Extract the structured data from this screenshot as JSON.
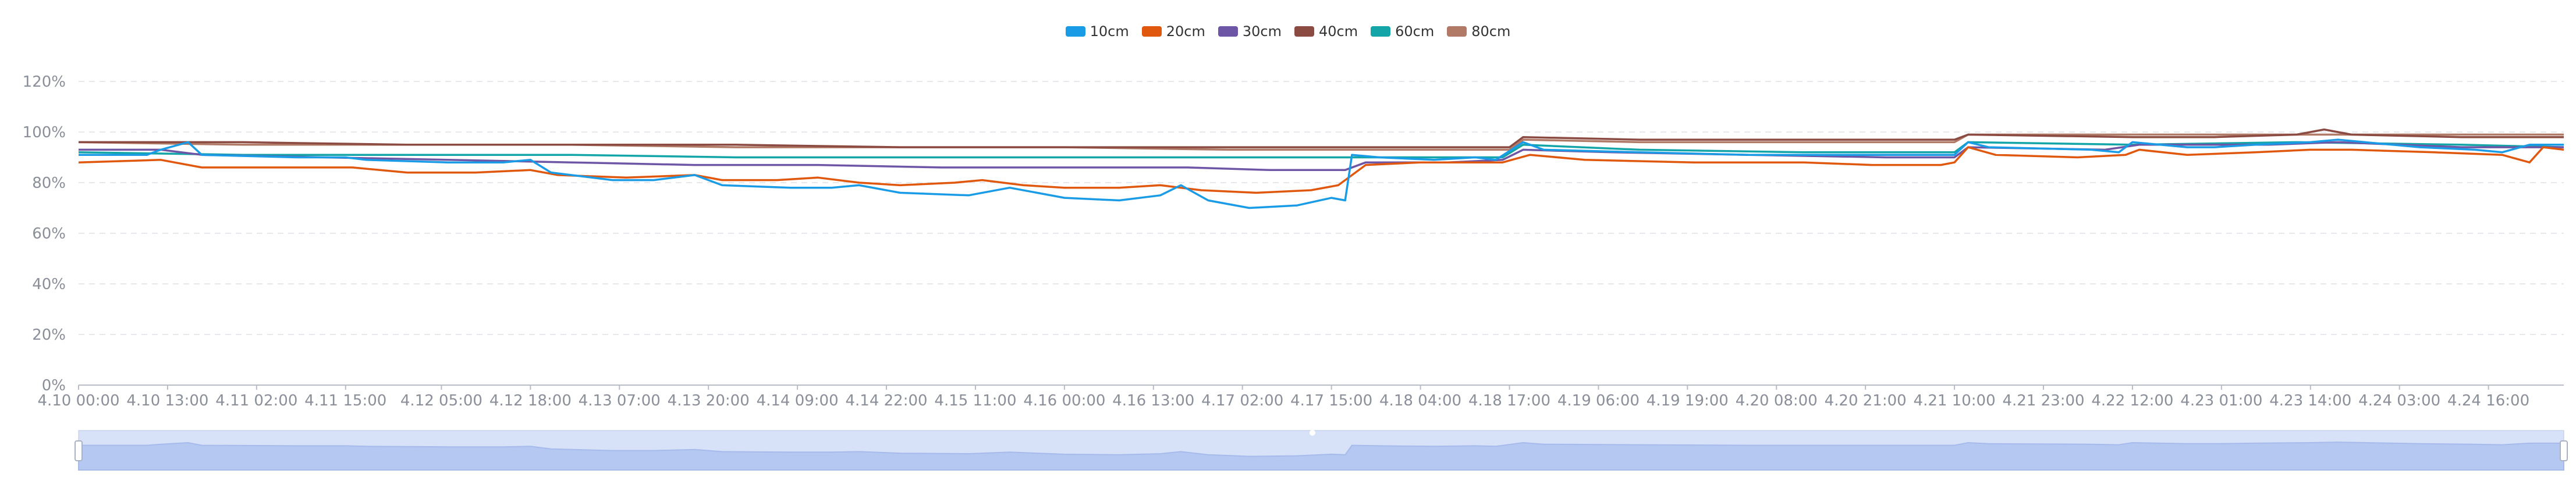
{
  "legend": {
    "items": [
      {
        "label": "10cm",
        "color": "#1a9be6"
      },
      {
        "label": "20cm",
        "color": "#e0570e"
      },
      {
        "label": "30cm",
        "color": "#6e56a6"
      },
      {
        "label": "40cm",
        "color": "#8b4a42"
      },
      {
        "label": "60cm",
        "color": "#14a5a8"
      },
      {
        "label": "80cm",
        "color": "#b07a66"
      }
    ]
  },
  "chart_data": {
    "type": "line",
    "title": "",
    "xlabel": "",
    "ylabel": "",
    "ylim": [
      0,
      120
    ],
    "y_ticks": [
      "0%",
      "20%",
      "40%",
      "60%",
      "80%",
      "100%",
      "120%"
    ],
    "grid": true,
    "legend_position": "top-center",
    "x_start": "4.10 00:00",
    "x_end": "4.25 03:00",
    "x_ticks": [
      "4.10 00:00",
      "4.10 13:00",
      "4.11 02:00",
      "4.11 15:00",
      "4.12 05:00",
      "4.12 18:00",
      "4.13 07:00",
      "4.13 20:00",
      "4.14 09:00",
      "4.14 22:00",
      "4.15 11:00",
      "4.16 00:00",
      "4.16 13:00",
      "4.17 02:00",
      "4.17 15:00",
      "4.18 04:00",
      "4.18 17:00",
      "4.19 06:00",
      "4.19 19:00",
      "4.20 08:00",
      "4.20 21:00",
      "4.21 10:00",
      "4.21 23:00",
      "4.22 12:00",
      "4.23 01:00",
      "4.23 14:00",
      "4.24 03:00",
      "4.24 16:00"
    ],
    "series": [
      {
        "name": "10cm",
        "color": "#1a9be6",
        "points": [
          [
            "4.10 00:00",
            91
          ],
          [
            "4.10 10:00",
            91
          ],
          [
            "4.10 12:00",
            93
          ],
          [
            "4.10 16:00",
            96
          ],
          [
            "4.10 18:00",
            91
          ],
          [
            "4.11 08:00",
            90
          ],
          [
            "4.11 15:00",
            90
          ],
          [
            "4.11 18:00",
            89
          ],
          [
            "4.12 06:00",
            88
          ],
          [
            "4.12 14:00",
            88
          ],
          [
            "4.12 18:00",
            89
          ],
          [
            "4.12 21:00",
            84
          ],
          [
            "4.13 06:00",
            81
          ],
          [
            "4.13 12:00",
            81
          ],
          [
            "4.13 18:00",
            83
          ],
          [
            "4.13 22:00",
            79
          ],
          [
            "4.14 08:00",
            78
          ],
          [
            "4.14 14:00",
            78
          ],
          [
            "4.14 18:00",
            79
          ],
          [
            "4.15 00:00",
            76
          ],
          [
            "4.15 10:00",
            75
          ],
          [
            "4.15 16:00",
            78
          ],
          [
            "4.15 20:00",
            76
          ],
          [
            "4.16 00:00",
            74
          ],
          [
            "4.16 08:00",
            73
          ],
          [
            "4.16 14:00",
            75
          ],
          [
            "4.16 17:00",
            79
          ],
          [
            "4.16 21:00",
            73
          ],
          [
            "4.17 03:00",
            70
          ],
          [
            "4.17 10:00",
            71
          ],
          [
            "4.17 15:00",
            74
          ],
          [
            "4.17 17:00",
            73
          ],
          [
            "4.17 18:00",
            91
          ],
          [
            "4.17 22:00",
            90
          ],
          [
            "4.18 06:00",
            89
          ],
          [
            "4.18 12:00",
            90
          ],
          [
            "4.18 15:00",
            89
          ],
          [
            "4.18 19:00",
            96
          ],
          [
            "4.18 22:00",
            93
          ],
          [
            "4.19 12:00",
            92
          ],
          [
            "4.20 04:00",
            91
          ],
          [
            "4.20 20:00",
            91
          ],
          [
            "4.21 07:00",
            91
          ],
          [
            "4.21 10:00",
            91
          ],
          [
            "4.21 12:00",
            96
          ],
          [
            "4.21 15:00",
            94
          ],
          [
            "4.22 06:00",
            93
          ],
          [
            "4.22 10:00",
            92
          ],
          [
            "4.22 12:00",
            96
          ],
          [
            "4.22 20:00",
            94
          ],
          [
            "4.23 00:00",
            94
          ],
          [
            "4.23 06:00",
            95
          ],
          [
            "4.23 14:00",
            96
          ],
          [
            "4.23 18:00",
            97
          ],
          [
            "4.24 06:00",
            94
          ],
          [
            "4.24 14:00",
            93
          ],
          [
            "4.24 18:00",
            92
          ],
          [
            "4.24 22:00",
            95
          ],
          [
            "4.25 03:00",
            95
          ]
        ]
      },
      {
        "name": "20cm",
        "color": "#e0570e",
        "points": [
          [
            "4.10 00:00",
            88
          ],
          [
            "4.10 12:00",
            89
          ],
          [
            "4.10 18:00",
            86
          ],
          [
            "4.11 04:00",
            86
          ],
          [
            "4.11 16:00",
            86
          ],
          [
            "4.12 00:00",
            84
          ],
          [
            "4.12 10:00",
            84
          ],
          [
            "4.12 18:00",
            85
          ],
          [
            "4.12 22:00",
            83
          ],
          [
            "4.13 08:00",
            82
          ],
          [
            "4.13 18:00",
            83
          ],
          [
            "4.13 22:00",
            81
          ],
          [
            "4.14 06:00",
            81
          ],
          [
            "4.14 12:00",
            82
          ],
          [
            "4.14 18:00",
            80
          ],
          [
            "4.15 00:00",
            79
          ],
          [
            "4.15 08:00",
            80
          ],
          [
            "4.15 12:00",
            81
          ],
          [
            "4.15 18:00",
            79
          ],
          [
            "4.16 00:00",
            78
          ],
          [
            "4.16 08:00",
            78
          ],
          [
            "4.16 14:00",
            79
          ],
          [
            "4.16 20:00",
            77
          ],
          [
            "4.17 04:00",
            76
          ],
          [
            "4.17 12:00",
            77
          ],
          [
            "4.17 16:00",
            79
          ],
          [
            "4.17 20:00",
            87
          ],
          [
            "4.18 04:00",
            88
          ],
          [
            "4.18 12:00",
            88
          ],
          [
            "4.18 16:00",
            88
          ],
          [
            "4.18 20:00",
            91
          ],
          [
            "4.19 04:00",
            89
          ],
          [
            "4.19 20:00",
            88
          ],
          [
            "4.20 12:00",
            88
          ],
          [
            "4.20 22:00",
            87
          ],
          [
            "4.21 08:00",
            87
          ],
          [
            "4.21 10:00",
            88
          ],
          [
            "4.21 12:00",
            94
          ],
          [
            "4.21 16:00",
            91
          ],
          [
            "4.22 04:00",
            90
          ],
          [
            "4.22 11:00",
            91
          ],
          [
            "4.22 13:00",
            93
          ],
          [
            "4.22 20:00",
            91
          ],
          [
            "4.23 06:00",
            92
          ],
          [
            "4.23 14:00",
            93
          ],
          [
            "4.23 20:00",
            93
          ],
          [
            "4.24 08:00",
            92
          ],
          [
            "4.24 18:00",
            91
          ],
          [
            "4.24 22:00",
            88
          ],
          [
            "4.25 00:00",
            94
          ],
          [
            "4.25 03:00",
            93
          ]
        ]
      },
      {
        "name": "30cm",
        "color": "#6e56a6",
        "points": [
          [
            "4.10 00:00",
            93
          ],
          [
            "4.10 12:00",
            93
          ],
          [
            "4.10 18:00",
            91
          ],
          [
            "4.11 12:00",
            90
          ],
          [
            "4.12 06:00",
            89
          ],
          [
            "4.13 00:00",
            88
          ],
          [
            "4.13 18:00",
            87
          ],
          [
            "4.14 12:00",
            87
          ],
          [
            "4.15 06:00",
            86
          ],
          [
            "4.16 00:00",
            86
          ],
          [
            "4.16 18:00",
            86
          ],
          [
            "4.17 06:00",
            85
          ],
          [
            "4.17 12:00",
            85
          ],
          [
            "4.17 17:00",
            85
          ],
          [
            "4.17 20:00",
            88
          ],
          [
            "4.18 08:00",
            88
          ],
          [
            "4.18 16:00",
            89
          ],
          [
            "4.18 19:00",
            93
          ],
          [
            "4.19 08:00",
            92
          ],
          [
            "4.20 04:00",
            91
          ],
          [
            "4.21 00:00",
            90
          ],
          [
            "4.21 10:00",
            90
          ],
          [
            "4.21 12:00",
            94
          ],
          [
            "4.22 08:00",
            93
          ],
          [
            "4.22 13:00",
            95
          ],
          [
            "4.23 08:00",
            95
          ],
          [
            "4.23 18:00",
            96
          ],
          [
            "4.24 12:00",
            94
          ],
          [
            "4.25 03:00",
            94
          ]
        ]
      },
      {
        "name": "40cm",
        "color": "#8b4a42",
        "points": [
          [
            "4.10 00:00",
            96
          ],
          [
            "4.11 00:00",
            96
          ],
          [
            "4.12 00:00",
            95
          ],
          [
            "4.13 00:00",
            95
          ],
          [
            "4.14 00:00",
            95
          ],
          [
            "4.15 00:00",
            94
          ],
          [
            "4.16 00:00",
            94
          ],
          [
            "4.17 00:00",
            94
          ],
          [
            "4.17 18:00",
            94
          ],
          [
            "4.18 12:00",
            94
          ],
          [
            "4.18 17:00",
            94
          ],
          [
            "4.18 19:00",
            98
          ],
          [
            "4.19 12:00",
            97
          ],
          [
            "4.20 12:00",
            97
          ],
          [
            "4.21 10:00",
            97
          ],
          [
            "4.21 12:00",
            99
          ],
          [
            "4.22 12:00",
            98
          ],
          [
            "4.23 00:00",
            98
          ],
          [
            "4.23 12:00",
            99
          ],
          [
            "4.23 16:00",
            101
          ],
          [
            "4.23 20:00",
            99
          ],
          [
            "4.24 12:00",
            98
          ],
          [
            "4.25 03:00",
            98
          ]
        ]
      },
      {
        "name": "60cm",
        "color": "#14a5a8",
        "points": [
          [
            "4.10 00:00",
            92
          ],
          [
            "4.11 00:00",
            91
          ],
          [
            "4.12 00:00",
            91
          ],
          [
            "4.13 00:00",
            91
          ],
          [
            "4.14 00:00",
            90
          ],
          [
            "4.15 00:00",
            90
          ],
          [
            "4.16 00:00",
            90
          ],
          [
            "4.17 00:00",
            90
          ],
          [
            "4.17 18:00",
            90
          ],
          [
            "4.18 16:00",
            90
          ],
          [
            "4.18 19:00",
            95
          ],
          [
            "4.19 12:00",
            93
          ],
          [
            "4.20 12:00",
            92
          ],
          [
            "4.21 10:00",
            92
          ],
          [
            "4.21 12:00",
            96
          ],
          [
            "4.22 12:00",
            95
          ],
          [
            "4.23 12:00",
            96
          ],
          [
            "4.24 12:00",
            95
          ],
          [
            "4.25 03:00",
            94
          ]
        ]
      },
      {
        "name": "80cm",
        "color": "#b07a66",
        "points": [
          [
            "4.10 00:00",
            96
          ],
          [
            "4.11 00:00",
            95
          ],
          [
            "4.12 00:00",
            95
          ],
          [
            "4.13 00:00",
            95
          ],
          [
            "4.14 00:00",
            94
          ],
          [
            "4.15 00:00",
            94
          ],
          [
            "4.16 00:00",
            94
          ],
          [
            "4.17 00:00",
            93
          ],
          [
            "4.18 00:00",
            93
          ],
          [
            "4.18 17:00",
            93
          ],
          [
            "4.18 19:00",
            97
          ],
          [
            "4.19 12:00",
            96
          ],
          [
            "4.20 12:00",
            96
          ],
          [
            "4.21 10:00",
            96
          ],
          [
            "4.21 12:00",
            99
          ],
          [
            "4.22 12:00",
            99
          ],
          [
            "4.23 00:00",
            99
          ],
          [
            "4.23 16:00",
            99
          ],
          [
            "4.24 12:00",
            99
          ],
          [
            "4.25 03:00",
            99
          ]
        ]
      }
    ]
  },
  "zoom_slider": {
    "start_percent": 0,
    "end_percent": 100
  }
}
